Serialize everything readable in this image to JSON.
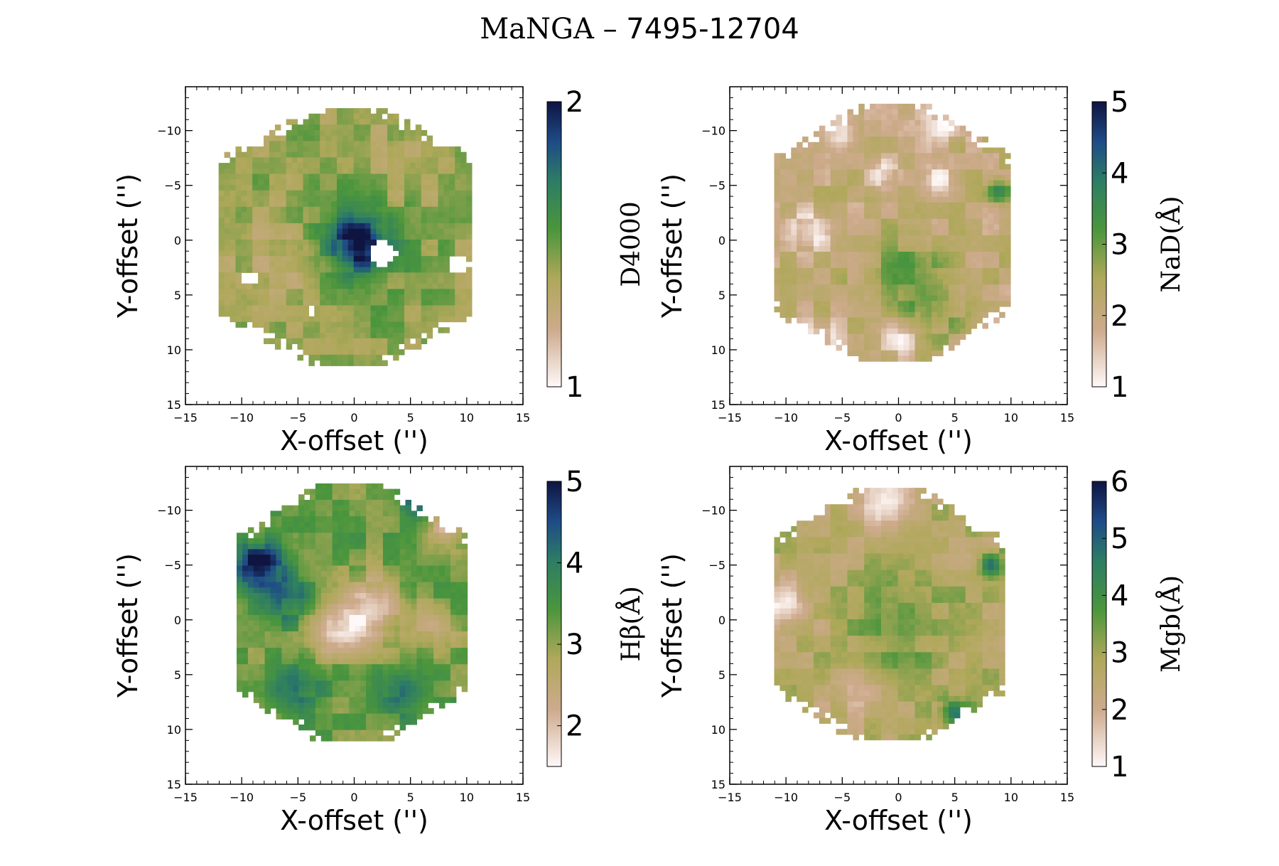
{
  "figure": {
    "title_prefix": "MaNGA – ",
    "title_id": "7495-12704"
  },
  "chart_data": [
    {
      "type": "heatmap",
      "quantity": "D4000",
      "xlabel": "X-offset ('')",
      "ylabel": "Y-offset ('')",
      "xlim": [
        -15,
        15
      ],
      "ylim": [
        15,
        -14
      ],
      "xticks": [
        -15,
        -10,
        -5,
        0,
        5,
        10,
        15
      ],
      "yticks": [
        -10,
        -5,
        0,
        5,
        10,
        15
      ],
      "colorbar": {
        "label": "D4000",
        "min": 1,
        "max": 2,
        "ticks": [
          1,
          2
        ]
      },
      "map": {
        "bounds": {
          "x": [
            -11.8,
            10.6
          ],
          "y": [
            -11.8,
            11.2
          ]
        },
        "base": 1.42,
        "features": [
          {
            "x": 0.3,
            "y": 0.3,
            "amp": 0.5,
            "sigma": 1.6
          },
          {
            "x": 0.5,
            "y": 0.0,
            "amp": 0.18,
            "sigma": 4.0
          },
          {
            "x": -6.5,
            "y": 2.0,
            "amp": -0.12,
            "sigma": 3.0
          },
          {
            "x": 5.0,
            "y": -6.0,
            "amp": -0.1,
            "sigma": 3.0
          }
        ],
        "holes": [
          {
            "x": 2.5,
            "y": 1.2,
            "r": 1.2
          },
          {
            "x": 9.3,
            "y": 2.2,
            "r": 0.9
          },
          {
            "x": -3.8,
            "y": 6.5,
            "r": 0.4
          },
          {
            "x": -9.3,
            "y": 3.5,
            "r": 0.6
          }
        ]
      }
    },
    {
      "type": "heatmap",
      "quantity": "NaD(Å)",
      "xlabel": "X-offset ('')",
      "ylabel": "Y-offset ('')",
      "xlim": [
        -15,
        15
      ],
      "ylim": [
        15,
        -14
      ],
      "xticks": [
        -15,
        -10,
        -5,
        0,
        5,
        10,
        15
      ],
      "yticks": [
        -10,
        -5,
        0,
        5,
        10,
        15
      ],
      "colorbar": {
        "label": "NaD(Å)",
        "min": 1,
        "max": 5,
        "ticks": [
          1,
          2,
          3,
          4,
          5
        ]
      },
      "map": {
        "bounds": {
          "x": [
            -10.8,
            9.8
          ],
          "y": [
            -12.2,
            11.0
          ]
        },
        "base": 2.1,
        "features": [
          {
            "x": -8.0,
            "y": -1.0,
            "amp": -1.0,
            "sigma": 1.3
          },
          {
            "x": -5.0,
            "y": -10.0,
            "amp": -0.9,
            "sigma": 1.2
          },
          {
            "x": 4.0,
            "y": -10.5,
            "amp": -0.9,
            "sigma": 1.2
          },
          {
            "x": -1.5,
            "y": -6.0,
            "amp": -0.9,
            "sigma": 1.0
          },
          {
            "x": 3.5,
            "y": -5.5,
            "amp": -0.8,
            "sigma": 1.0
          },
          {
            "x": -7.0,
            "y": 9.0,
            "amp": -0.9,
            "sigma": 1.2
          },
          {
            "x": 0.0,
            "y": 9.0,
            "amp": -0.9,
            "sigma": 1.2
          },
          {
            "x": 8.5,
            "y": 8.0,
            "amp": -0.8,
            "sigma": 1.0
          },
          {
            "x": 0.5,
            "y": 3.0,
            "amp": 0.9,
            "sigma": 2.5
          },
          {
            "x": 3.5,
            "y": 6.5,
            "amp": 0.7,
            "sigma": 2.0
          },
          {
            "x": 9.0,
            "y": -4.5,
            "amp": 1.4,
            "sigma": 0.8
          }
        ],
        "holes": []
      }
    },
    {
      "type": "heatmap",
      "quantity": "Hβ(Å)",
      "xlabel": "X-offset ('')",
      "ylabel": "Y-offset ('')",
      "xlim": [
        -15,
        15
      ],
      "ylim": [
        15,
        -14
      ],
      "xticks": [
        -15,
        -10,
        -5,
        0,
        5,
        10,
        15
      ],
      "yticks": [
        -10,
        -5,
        0,
        5,
        10,
        15
      ],
      "colorbar": {
        "label": "Hβ(Å)",
        "min": 1.5,
        "max": 5,
        "ticks": [
          2,
          3,
          4,
          5
        ]
      },
      "map": {
        "bounds": {
          "x": [
            -10.2,
            9.8
          ],
          "y": [
            -12.2,
            11.0
          ]
        },
        "base": 3.25,
        "features": [
          {
            "x": -8.5,
            "y": -5.0,
            "amp": 1.9,
            "sigma": 1.5
          },
          {
            "x": -6.0,
            "y": -2.0,
            "amp": 1.0,
            "sigma": 1.5
          },
          {
            "x": 1.5,
            "y": -1.0,
            "amp": -1.5,
            "sigma": 2.0
          },
          {
            "x": -1.5,
            "y": 1.0,
            "amp": -1.3,
            "sigma": 1.6
          },
          {
            "x": 6.0,
            "y": -11.0,
            "amp": 1.4,
            "sigma": 1.0
          },
          {
            "x": -5.0,
            "y": 6.0,
            "amp": 0.9,
            "sigma": 1.5
          },
          {
            "x": 4.0,
            "y": 6.5,
            "amp": 0.9,
            "sigma": 1.5
          },
          {
            "x": 7.0,
            "y": 1.0,
            "amp": -0.7,
            "sigma": 1.5
          },
          {
            "x": 8.0,
            "y": -8.0,
            "amp": -1.0,
            "sigma": 1.2
          }
        ],
        "holes": []
      }
    },
    {
      "type": "heatmap",
      "quantity": "Mgb(Å)",
      "xlabel": "X-offset ('')",
      "ylabel": "Y-offset ('')",
      "xlim": [
        -15,
        15
      ],
      "ylim": [
        15,
        -14
      ],
      "xticks": [
        -15,
        -10,
        -5,
        0,
        5,
        10,
        15
      ],
      "yticks": [
        -10,
        -5,
        0,
        5,
        10,
        15
      ],
      "colorbar": {
        "label": "Mgb(Å)",
        "min": 1,
        "max": 6,
        "ticks": [
          1,
          2,
          3,
          4,
          5,
          6
        ]
      },
      "map": {
        "bounds": {
          "x": [
            -10.8,
            9.2
          ],
          "y": [
            -11.8,
            11.0
          ]
        },
        "base": 2.7,
        "features": [
          {
            "x": 0.5,
            "y": 0.5,
            "amp": 0.8,
            "sigma": 3.0
          },
          {
            "x": 8.2,
            "y": -5.0,
            "amp": 2.2,
            "sigma": 0.8
          },
          {
            "x": 5.0,
            "y": 8.5,
            "amp": 2.0,
            "sigma": 0.9
          },
          {
            "x": -1.0,
            "y": -11.0,
            "amp": -1.3,
            "sigma": 2.0
          },
          {
            "x": -10.0,
            "y": -1.5,
            "amp": -1.4,
            "sigma": 1.3
          },
          {
            "x": -4.0,
            "y": 6.5,
            "amp": -0.6,
            "sigma": 1.8
          }
        ],
        "holes": []
      }
    }
  ]
}
